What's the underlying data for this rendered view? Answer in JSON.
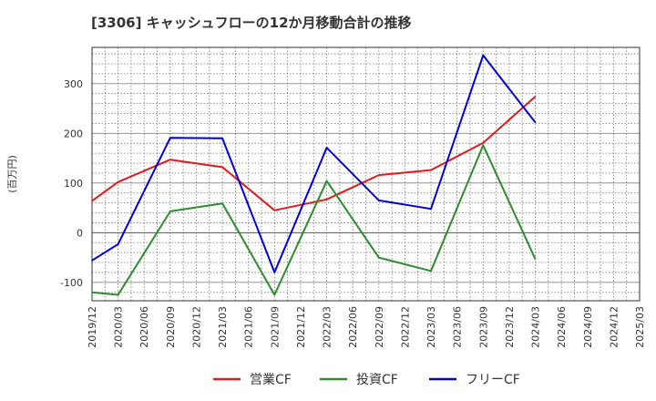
{
  "chart_data": {
    "type": "line",
    "title": "[3306]  キャッシュフローの12か月移動合計の推移",
    "ylabel": "(百万円)",
    "xlabel": "",
    "ylim": [
      -137,
      373
    ],
    "yticks": [
      -100,
      0,
      100,
      200,
      300
    ],
    "categories": [
      "2019/12",
      "2020/03",
      "2020/06",
      "2020/09",
      "2020/12",
      "2021/03",
      "2021/06",
      "2021/09",
      "2021/12",
      "2022/03",
      "2022/06",
      "2022/09",
      "2022/12",
      "2023/03",
      "2023/06",
      "2023/09",
      "2023/12",
      "2024/03",
      "2024/06",
      "2024/09",
      "2024/12",
      "2025/03"
    ],
    "grid": true,
    "legend_position": "bottom",
    "series": [
      {
        "name": "営業CF",
        "color": "#e31a1c",
        "values": [
          64,
          102,
          null,
          147,
          null,
          132,
          null,
          45,
          null,
          67,
          null,
          116,
          null,
          126,
          null,
          181,
          null,
          274,
          null,
          null,
          null,
          null
        ]
      },
      {
        "name": "投資CF",
        "color": "#2e8b2e",
        "values": [
          -120,
          -125,
          null,
          43,
          null,
          59,
          null,
          -125,
          null,
          104,
          null,
          -50,
          null,
          -77,
          null,
          176,
          null,
          -53,
          null,
          null,
          null,
          null
        ]
      },
      {
        "name": "フリーCF",
        "color": "#0000dd",
        "values": [
          -56,
          -23,
          null,
          191,
          null,
          190,
          null,
          -80,
          null,
          171,
          null,
          65,
          null,
          48,
          null,
          357,
          null,
          222,
          null,
          null,
          null,
          null
        ]
      }
    ]
  }
}
